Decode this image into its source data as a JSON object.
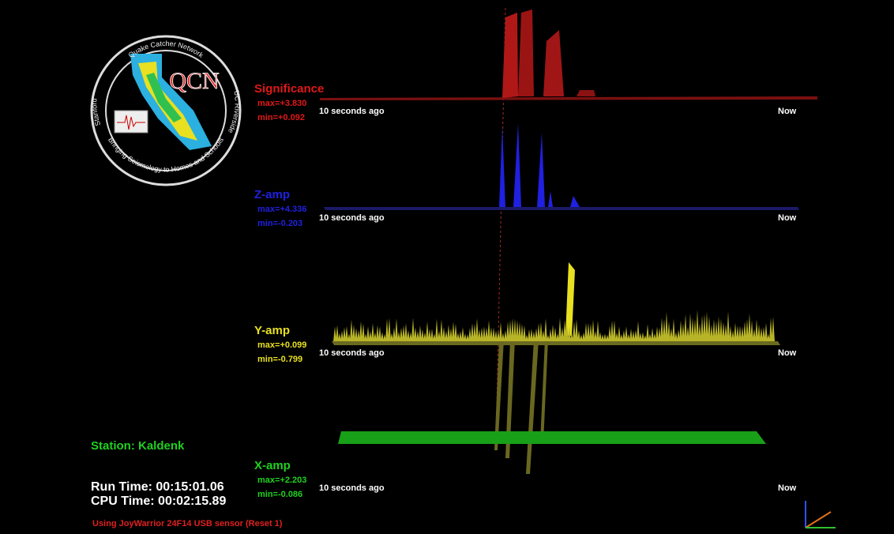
{
  "logo": {
    "top_text": "Quake Catcher Network",
    "left_text": "Stanford",
    "right_text": "UC Riverside",
    "bottom_text": "Bringing Seismology to Homes and Schools",
    "mark": "QCN"
  },
  "panels": [
    {
      "label": "Significance",
      "max": "max=+3.830",
      "min": "min=+0.092",
      "axis_start": "10 seconds ago",
      "axis_end": "Now"
    },
    {
      "label": "Z-amp",
      "max": "max=+4.336",
      "min": "min=-0.203",
      "axis_start": "10 seconds ago",
      "axis_end": "Now"
    },
    {
      "label": "Y-amp",
      "max": "max=+0.099",
      "min": "min=-0.799",
      "axis_start": "10 seconds ago",
      "axis_end": "Now"
    },
    {
      "label": "X-amp",
      "max": "max=+2.203",
      "min": "min=-0.086",
      "axis_start": "10 seconds ago",
      "axis_end": "Now"
    }
  ],
  "status": {
    "station": "Station: Kaldenk",
    "run_time": "Run Time: 00:15:01.06",
    "cpu_time": "CPU Time: 00:02:15.89",
    "sensor": "Using JoyWarrior 24F14 USB sensor (Reset 1)"
  }
}
